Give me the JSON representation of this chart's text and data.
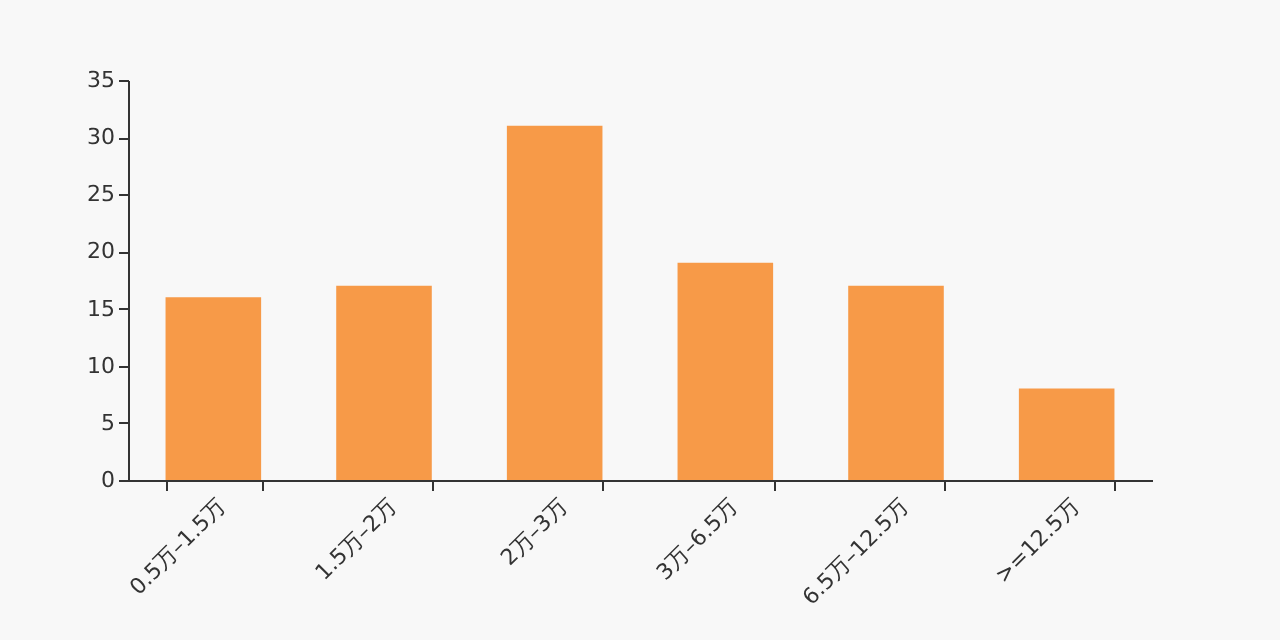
{
  "chart_data": {
    "type": "bar",
    "categories": [
      "0.5万–1.5万",
      "1.5万–2万",
      "2万–3万",
      "3万–6.5万",
      "6.5万–12.5万",
      ">=12.5万"
    ],
    "values": [
      16,
      17,
      31,
      19,
      17,
      8
    ],
    "color": "#f79a48",
    "ylim": [
      0,
      35
    ],
    "yticks": [
      0,
      5,
      10,
      15,
      20,
      25,
      30,
      35
    ],
    "grid": false
  }
}
